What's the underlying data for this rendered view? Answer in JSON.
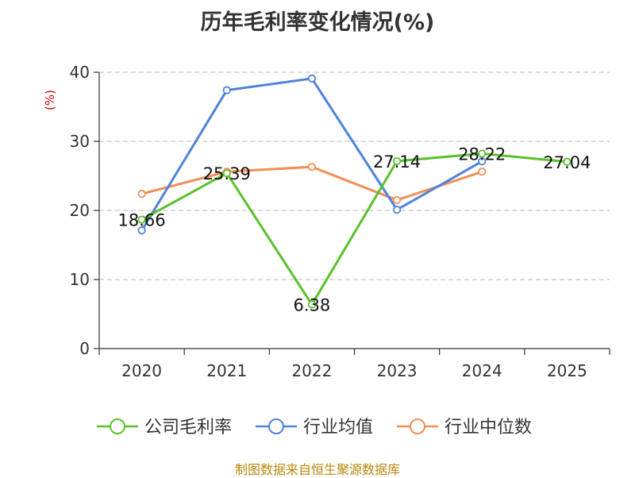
{
  "chart_data": {
    "type": "line",
    "title": "历年毛利率变化情况(%)",
    "ylabel": "(%)",
    "xlabel": "",
    "categories": [
      "2020",
      "2021",
      "2022",
      "2023",
      "2024",
      "2025"
    ],
    "ylim": [
      0,
      40
    ],
    "yticks": [
      0,
      10,
      20,
      30,
      40
    ],
    "grid": true,
    "legend_position": "bottom",
    "series": [
      {
        "name": "公司毛利率",
        "color": "#5ac12c",
        "values": [
          18.66,
          25.39,
          6.38,
          27.14,
          28.22,
          27.04
        ],
        "labels": [
          "18.66",
          "25.39",
          "6.38",
          "27.14",
          "28.22",
          "27.04"
        ]
      },
      {
        "name": "行业均值",
        "color": "#4f82dc",
        "values": [
          17.1,
          37.4,
          39.1,
          20.1,
          27.1,
          null
        ]
      },
      {
        "name": "行业中位数",
        "color": "#f28e57",
        "values": [
          22.4,
          25.6,
          26.3,
          21.5,
          25.6,
          null
        ]
      }
    ]
  },
  "source_note": "制图数据来自恒生聚源数据库"
}
